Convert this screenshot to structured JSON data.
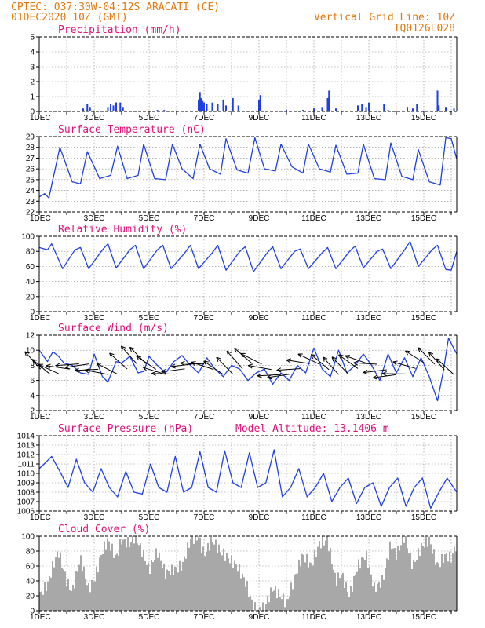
{
  "header": {
    "line1": "CPTEC:  037:30W-04:12S  ARACATI (CE)",
    "line2": "01DEC2020 10Z (GMT)",
    "right1": "Vertical Grid Line: 10Z",
    "right2": "TQ0126L028"
  },
  "colors": {
    "header": "#e07a10",
    "title": "#e0107a",
    "series": "#1f3fe0",
    "cloud": "#a8a8a8",
    "arrow": "#000000"
  },
  "x_labels": [
    "1DEC",
    "3DEC",
    "5DEC",
    "7DEC",
    "9DEC",
    "11DEC",
    "13DEC",
    "15DEC"
  ],
  "chart_data": [
    {
      "type": "bar",
      "title": "Precipitation (mm/h)",
      "ylim": [
        0,
        5
      ],
      "yticks": [
        "0",
        "1",
        "2",
        "3",
        "4",
        "5"
      ],
      "xlim_days": [
        1,
        16.2
      ],
      "x": [
        2.6,
        2.75,
        2.85,
        3.5,
        3.6,
        3.7,
        3.8,
        3.95,
        4.05,
        5.3,
        5.55,
        6.8,
        6.85,
        6.9,
        6.95,
        7.0,
        7.1,
        7.3,
        7.5,
        7.7,
        7.8,
        8.05,
        8.25,
        9.0,
        9.05,
        10.0,
        10.6,
        11.0,
        11.3,
        11.5,
        11.55,
        11.8,
        12.6,
        12.75,
        12.9,
        13.0,
        13.55,
        13.7,
        14.4,
        14.6,
        14.75,
        15.5,
        15.55,
        15.8,
        16.1
      ],
      "values": [
        0.2,
        0.5,
        0.3,
        0.3,
        0.5,
        0.4,
        0.6,
        0.6,
        0.3,
        0.1,
        0.1,
        0.8,
        1.3,
        0.9,
        0.7,
        0.6,
        0.5,
        0.6,
        0.5,
        0.8,
        0.4,
        0.9,
        0.4,
        0.8,
        1.1,
        0.1,
        0.1,
        0.2,
        0.3,
        0.9,
        1.4,
        0.2,
        0.4,
        0.5,
        0.3,
        0.6,
        0.5,
        0.1,
        0.3,
        0.2,
        0.5,
        1.4,
        0.4,
        0.3,
        0.2
      ]
    },
    {
      "type": "line",
      "title": "Surface Temperature (nC)",
      "ylim": [
        22,
        29
      ],
      "yticks": [
        "22",
        "23",
        "24",
        "25",
        "26",
        "27",
        "28",
        "29"
      ],
      "xlim_days": [
        1,
        16.2
      ],
      "x": [
        1.0,
        1.2,
        1.35,
        1.75,
        2.2,
        2.5,
        2.75,
        3.2,
        3.6,
        3.85,
        4.2,
        4.6,
        4.8,
        5.2,
        5.6,
        5.85,
        6.2,
        6.6,
        6.85,
        7.2,
        7.6,
        7.8,
        8.2,
        8.6,
        8.85,
        9.2,
        9.6,
        9.8,
        10.2,
        10.6,
        10.8,
        11.2,
        11.6,
        11.8,
        12.2,
        12.6,
        12.8,
        13.2,
        13.6,
        13.8,
        14.2,
        14.6,
        14.8,
        15.2,
        15.6,
        15.8,
        16.0,
        16.2
      ],
      "values": [
        23.4,
        23.7,
        23.3,
        28.0,
        24.8,
        24.6,
        27.6,
        25.1,
        25.4,
        28.1,
        25.1,
        25.4,
        28.3,
        25.1,
        25.0,
        28.3,
        26.0,
        25.1,
        28.3,
        26.0,
        25.5,
        28.8,
        25.9,
        25.6,
        28.9,
        26.0,
        25.8,
        28.3,
        26.2,
        25.6,
        28.3,
        26.0,
        25.7,
        28.2,
        25.5,
        25.6,
        28.3,
        25.1,
        25.0,
        28.4,
        25.3,
        25.0,
        27.8,
        24.8,
        24.5,
        28.9,
        28.8,
        26.9
      ]
    },
    {
      "type": "line",
      "title": "Relative Humidity (%)",
      "ylim": [
        0,
        100
      ],
      "yticks": [
        "0",
        "20",
        "40",
        "60",
        "80",
        "100"
      ],
      "xlim_days": [
        1,
        16.2
      ],
      "x": [
        1.0,
        1.3,
        1.45,
        1.85,
        2.3,
        2.5,
        2.8,
        3.3,
        3.5,
        3.8,
        4.3,
        4.5,
        4.8,
        5.3,
        5.5,
        5.8,
        6.3,
        6.5,
        6.8,
        7.3,
        7.5,
        7.8,
        8.3,
        8.5,
        8.8,
        9.3,
        9.5,
        9.8,
        10.3,
        10.5,
        10.8,
        11.3,
        11.5,
        11.8,
        12.3,
        12.5,
        12.8,
        13.3,
        13.5,
        13.8,
        14.3,
        14.5,
        14.8,
        15.3,
        15.5,
        15.8,
        16.0,
        16.2
      ],
      "values": [
        85,
        82,
        90,
        57,
        82,
        85,
        57,
        82,
        90,
        58,
        82,
        88,
        57,
        82,
        88,
        57,
        78,
        88,
        57,
        78,
        88,
        55,
        80,
        86,
        53,
        78,
        86,
        57,
        80,
        83,
        57,
        78,
        85,
        57,
        80,
        87,
        58,
        80,
        83,
        57,
        82,
        93,
        60,
        82,
        88,
        56,
        55,
        80
      ]
    },
    {
      "type": "line",
      "title": "Surface Wind (m/s)",
      "ylim": [
        2,
        12
      ],
      "yticks": [
        "2",
        "4",
        "6",
        "8",
        "10",
        "12"
      ],
      "xlim_days": [
        1,
        16.2
      ],
      "x": [
        1.0,
        1.3,
        1.5,
        1.7,
        1.9,
        2.2,
        2.5,
        2.8,
        3.0,
        3.3,
        3.5,
        3.8,
        4.0,
        4.3,
        4.6,
        4.8,
        5.0,
        5.3,
        5.6,
        5.9,
        6.2,
        6.5,
        6.8,
        7.1,
        7.4,
        7.7,
        8.0,
        8.3,
        8.6,
        8.9,
        9.2,
        9.5,
        9.8,
        10.1,
        10.4,
        10.7,
        11.0,
        11.3,
        11.6,
        11.9,
        12.2,
        12.5,
        12.8,
        13.1,
        13.4,
        13.7,
        14.0,
        14.3,
        14.6,
        14.9,
        15.2,
        15.5,
        15.7,
        15.9,
        16.2
      ],
      "values": [
        10.0,
        8.5,
        9.8,
        9.2,
        8.3,
        8.0,
        7.0,
        6.8,
        9.5,
        6.5,
        5.8,
        8.5,
        8.3,
        9.2,
        7.0,
        7.2,
        9.2,
        8.0,
        7.0,
        8.5,
        9.3,
        8.0,
        7.0,
        9.0,
        7.5,
        6.5,
        8.0,
        7.5,
        6.0,
        7.0,
        7.5,
        5.5,
        7.0,
        6.0,
        8.0,
        7.0,
        10.3,
        7.5,
        6.5,
        10.0,
        7.0,
        8.0,
        9.5,
        8.0,
        6.0,
        9.5,
        7.0,
        9.0,
        6.5,
        9.0,
        6.5,
        3.3,
        7.0,
        11.6,
        9.5
      ]
    },
    {
      "type": "line",
      "title": "Surface Pressure (hPa)",
      "annotation": "Model Altitude: 13.1406 m",
      "ylim": [
        1006,
        1014
      ],
      "yticks": [
        "1006",
        "1007",
        "1008",
        "1009",
        "1010",
        "1011",
        "1012",
        "1013",
        "1014"
      ],
      "xlim_days": [
        1,
        16.2
      ],
      "x": [
        1.0,
        1.25,
        1.45,
        1.75,
        2.05,
        2.35,
        2.65,
        2.95,
        3.25,
        3.55,
        3.85,
        4.15,
        4.45,
        4.75,
        5.05,
        5.35,
        5.65,
        5.95,
        6.25,
        6.55,
        6.85,
        7.15,
        7.45,
        7.75,
        8.05,
        8.35,
        8.65,
        8.95,
        9.25,
        9.55,
        9.85,
        10.15,
        10.45,
        10.75,
        11.05,
        11.35,
        11.65,
        11.95,
        12.25,
        12.55,
        12.85,
        13.15,
        13.45,
        13.75,
        14.05,
        14.35,
        14.65,
        14.95,
        15.25,
        15.55,
        15.85,
        16.2
      ],
      "values": [
        1010.5,
        1011.2,
        1011.8,
        1010.2,
        1008.5,
        1011.5,
        1009.0,
        1008.0,
        1010.5,
        1008.5,
        1007.5,
        1010.2,
        1008.0,
        1007.8,
        1011.0,
        1008.5,
        1008.0,
        1011.8,
        1008.0,
        1008.5,
        1012.3,
        1008.5,
        1008.0,
        1012.4,
        1009.0,
        1008.5,
        1012.2,
        1008.5,
        1009.0,
        1012.5,
        1007.5,
        1008.5,
        1010.5,
        1007.5,
        1008.5,
        1010.0,
        1007.0,
        1008.5,
        1009.5,
        1006.8,
        1008.5,
        1009.0,
        1006.5,
        1008.5,
        1009.5,
        1006.5,
        1008.5,
        1009.5,
        1006.3,
        1008.0,
        1009.5,
        1008.0
      ]
    },
    {
      "type": "area",
      "title": "Cloud Cover (%)",
      "ylim": [
        0,
        100
      ],
      "yticks": [
        "0",
        "20",
        "40",
        "60",
        "80",
        "100"
      ],
      "xlim_days": [
        1,
        16.2
      ],
      "x": [
        1.0,
        1.3,
        1.5,
        1.7,
        2.0,
        2.2,
        2.5,
        2.8,
        3.0,
        3.3,
        3.5,
        3.8,
        4.0,
        4.3,
        4.5,
        4.8,
        5.0,
        5.3,
        5.6,
        5.9,
        6.2,
        6.5,
        6.8,
        7.0,
        7.3,
        7.6,
        7.9,
        8.2,
        8.5,
        8.8,
        9.0,
        9.2,
        9.5,
        9.8,
        10.0,
        10.3,
        10.6,
        10.9,
        11.2,
        11.5,
        11.8,
        12.0,
        12.3,
        12.6,
        12.9,
        13.2,
        13.5,
        13.8,
        14.0,
        14.3,
        14.6,
        14.9,
        15.2,
        15.5,
        15.8,
        16.0,
        16.2
      ],
      "values": [
        20,
        35,
        60,
        80,
        40,
        25,
        70,
        30,
        40,
        80,
        95,
        70,
        95,
        90,
        100,
        75,
        55,
        80,
        50,
        55,
        60,
        95,
        100,
        75,
        95,
        80,
        70,
        60,
        40,
        5,
        0,
        5,
        30,
        20,
        10,
        45,
        75,
        60,
        90,
        95,
        40,
        50,
        20,
        60,
        75,
        30,
        40,
        90,
        75,
        100,
        60,
        85,
        95,
        60,
        75,
        70,
        90
      ]
    }
  ]
}
